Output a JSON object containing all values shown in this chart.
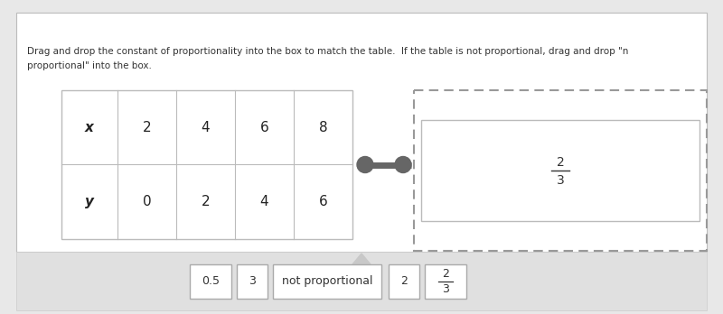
{
  "bg_outer": "#e8e8e8",
  "bg_white": "#ffffff",
  "bg_panel": "#f0f0f0",
  "bg_lower": "#e0e0e0",
  "border_color": "#bbbbbb",
  "dashed_color": "#999999",
  "text_color": "#333333",
  "connector_color": "#666666",
  "instruction_line1": "Drag and drop the constant of proportionality into the box to match the table.  If the table is not proportional, drag and drop \"n",
  "instruction_line2": "proportional\" into the box.",
  "table_x_vals": [
    "x",
    "2",
    "4",
    "6",
    "8"
  ],
  "table_y_vals": [
    "y",
    "0",
    "2",
    "4",
    "6"
  ],
  "answer_num": "2",
  "answer_den": "3",
  "options": [
    "0.5",
    "3",
    "not proportional",
    "2"
  ],
  "opt_frac_num": "2",
  "opt_frac_den": "3",
  "fig_w": 8.0,
  "fig_h": 3.48,
  "dpi": 100
}
